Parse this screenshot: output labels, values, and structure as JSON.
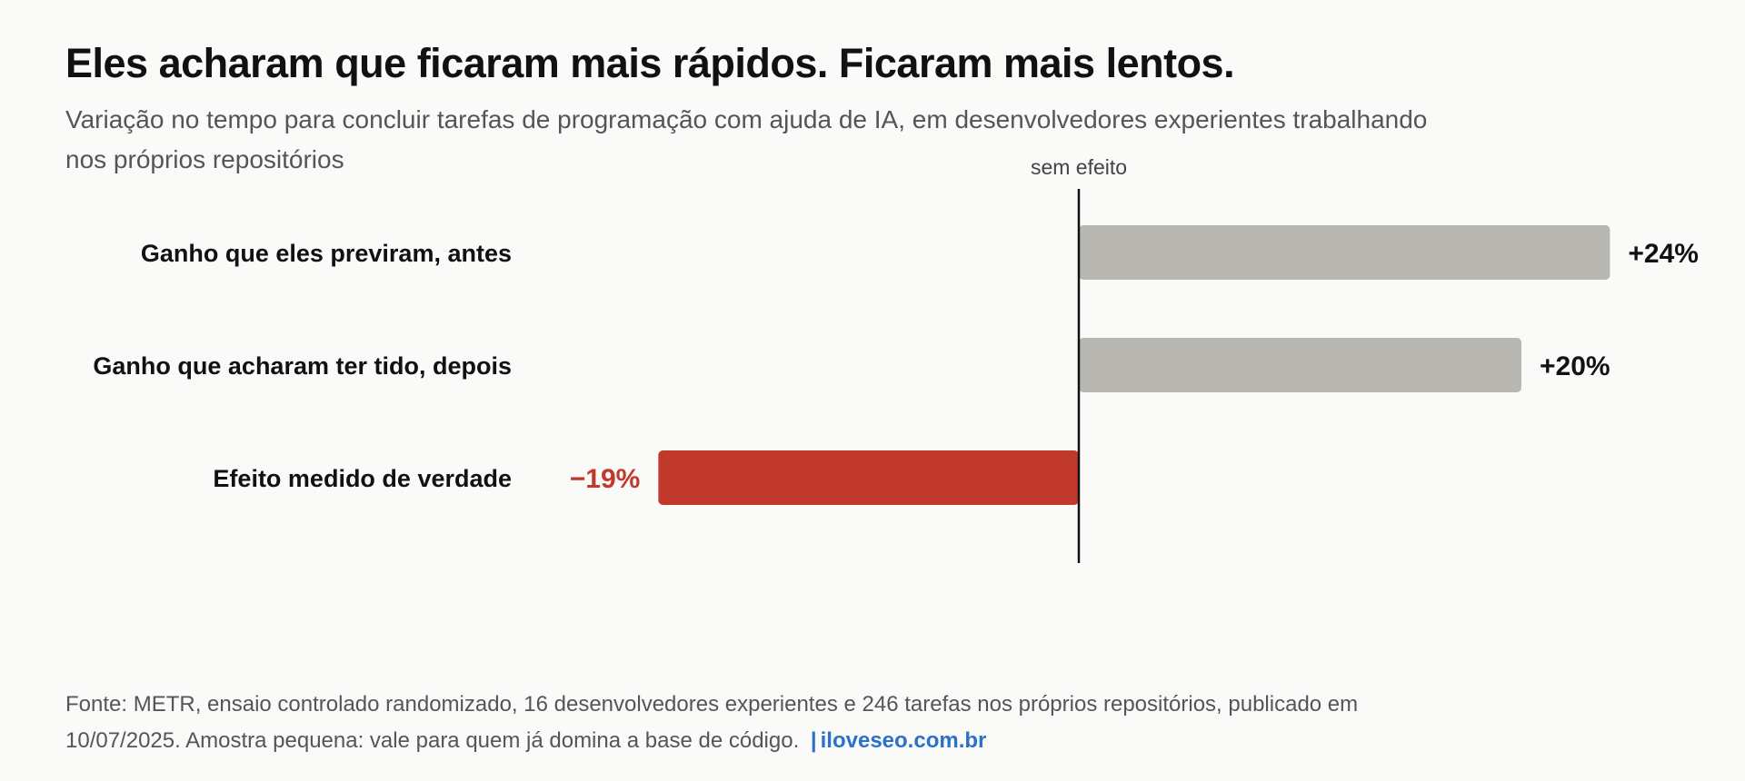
{
  "title": "Eles acharam que ficaram mais rápidos. Ficaram mais lentos.",
  "subtitle": "Variação no tempo para concluir tarefas de programação com ajuda de IA, em desenvolvedores experientes trabalhando nos próprios repositórios",
  "chart_data": {
    "type": "bar",
    "orientation": "horizontal",
    "categories": [
      "Ganho que eles previram, antes",
      "Ganho que acharam ter tido, depois",
      "Efeito medido de verdade"
    ],
    "values": [
      24,
      20,
      -19
    ],
    "value_labels": [
      "+24%",
      "+20%",
      "−19%"
    ],
    "bar_colors": [
      "#b8b7b1",
      "#b8b7b1",
      "#c0392b"
    ],
    "value_label_colors": [
      "#111111",
      "#111111",
      "#c0392b"
    ],
    "zero_line_label": "sem efeito",
    "xlim": [
      -19,
      24
    ],
    "grid": false,
    "legend": "none"
  },
  "source": {
    "text": "Fonte: METR, ensaio controlado randomizado, 16 desenvolvedores experientes e 246 tarefas nos próprios repositórios, publicado em 10/07/2025. Amostra pequena: vale para quem já domina a base de código.",
    "separator": "|",
    "link_text": "iloveseo.com.br"
  },
  "colors": {
    "positive_bar": "#b8b7b1",
    "negative_bar": "#c0392b",
    "link": "#2a72c9",
    "background": "#fafaf8"
  }
}
